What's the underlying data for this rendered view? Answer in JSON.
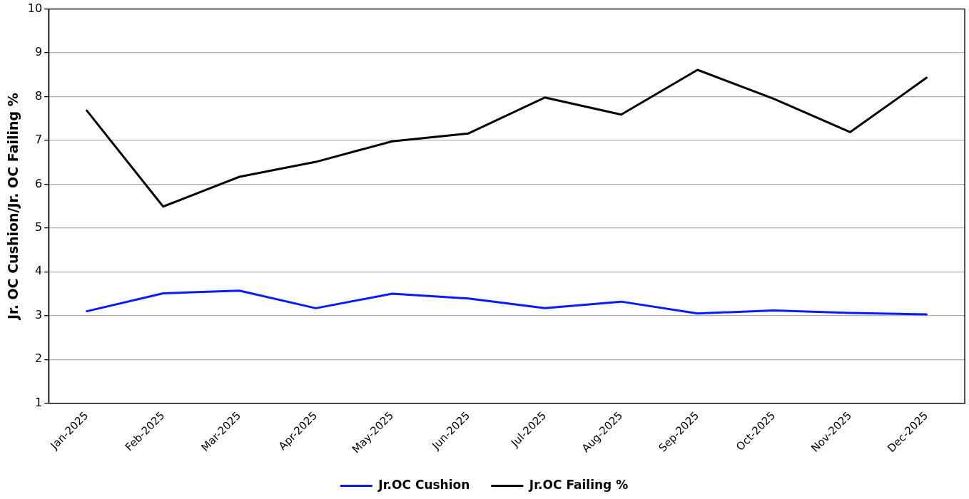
{
  "chart_data": {
    "type": "line",
    "ylabel": "Jr. OC Cushion/Jr. OC Failing %",
    "categories": [
      "Jan-2025",
      "Feb-2025",
      "Mar-2025",
      "Apr-2025",
      "May-2025",
      "Jun-2025",
      "Jul-2025",
      "Aug-2025",
      "Sep-2025",
      "Oct-2025",
      "Nov-2025",
      "Dec-2025"
    ],
    "series": [
      {
        "name": "Jr.OC Cushion",
        "color": "#0a1aff",
        "values": [
          3.1,
          3.51,
          3.57,
          3.17,
          3.5,
          3.39,
          3.17,
          3.32,
          3.05,
          3.12,
          3.06,
          3.03
        ]
      },
      {
        "name": "Jr.OC Failing %",
        "color": "#000000",
        "values": [
          7.68,
          5.49,
          6.17,
          6.51,
          6.98,
          7.16,
          7.98,
          7.59,
          8.61,
          7.95,
          7.19,
          8.43
        ]
      }
    ],
    "ylim": [
      1,
      10
    ],
    "yticks": [
      1,
      2,
      3,
      4,
      5,
      6,
      7,
      8,
      9,
      10
    ],
    "grid": "y",
    "legend": "bottom",
    "marker": "none",
    "line_style": "solid"
  }
}
